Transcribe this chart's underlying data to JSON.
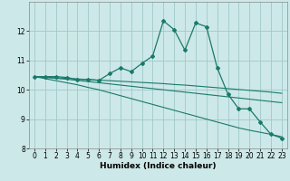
{
  "title": "",
  "xlabel": "Humidex (Indice chaleur)",
  "bg_color": "#cde8e8",
  "line_color": "#1a7a6a",
  "grid_color": "#a0c8c8",
  "x_data": [
    0,
    1,
    2,
    3,
    4,
    5,
    6,
    7,
    8,
    9,
    10,
    11,
    12,
    13,
    14,
    15,
    16,
    17,
    18,
    19,
    20,
    21,
    22,
    23
  ],
  "main_line": [
    10.45,
    10.45,
    10.45,
    10.42,
    10.35,
    10.35,
    10.32,
    10.55,
    10.75,
    10.62,
    10.9,
    11.15,
    12.35,
    12.05,
    11.35,
    12.28,
    12.15,
    10.75,
    9.85,
    9.35,
    9.35,
    8.9,
    8.48,
    8.35
  ],
  "trend1": [
    10.45,
    10.38,
    10.31,
    10.24,
    10.17,
    10.08,
    10.0,
    9.9,
    9.8,
    9.7,
    9.6,
    9.5,
    9.4,
    9.3,
    9.2,
    9.1,
    9.0,
    8.9,
    8.8,
    8.7,
    8.62,
    8.55,
    8.48,
    8.4
  ],
  "trend2": [
    10.45,
    10.42,
    10.39,
    10.36,
    10.32,
    10.28,
    10.24,
    10.2,
    10.16,
    10.12,
    10.08,
    10.04,
    10.0,
    9.96,
    9.92,
    9.88,
    9.84,
    9.8,
    9.76,
    9.72,
    9.68,
    9.64,
    9.6,
    9.56
  ],
  "trend3": [
    10.45,
    10.43,
    10.41,
    10.39,
    10.37,
    10.35,
    10.33,
    10.31,
    10.29,
    10.27,
    10.25,
    10.23,
    10.21,
    10.18,
    10.16,
    10.13,
    10.1,
    10.07,
    10.04,
    10.01,
    9.98,
    9.95,
    9.92,
    9.88
  ],
  "ylim": [
    8,
    13
  ],
  "xlim": [
    -0.5,
    23.5
  ],
  "yticks": [
    8,
    9,
    10,
    11,
    12
  ],
  "xticks": [
    0,
    1,
    2,
    3,
    4,
    5,
    6,
    7,
    8,
    9,
    10,
    11,
    12,
    13,
    14,
    15,
    16,
    17,
    18,
    19,
    20,
    21,
    22,
    23
  ],
  "tick_fontsize": 5.5,
  "label_fontsize": 6.5
}
